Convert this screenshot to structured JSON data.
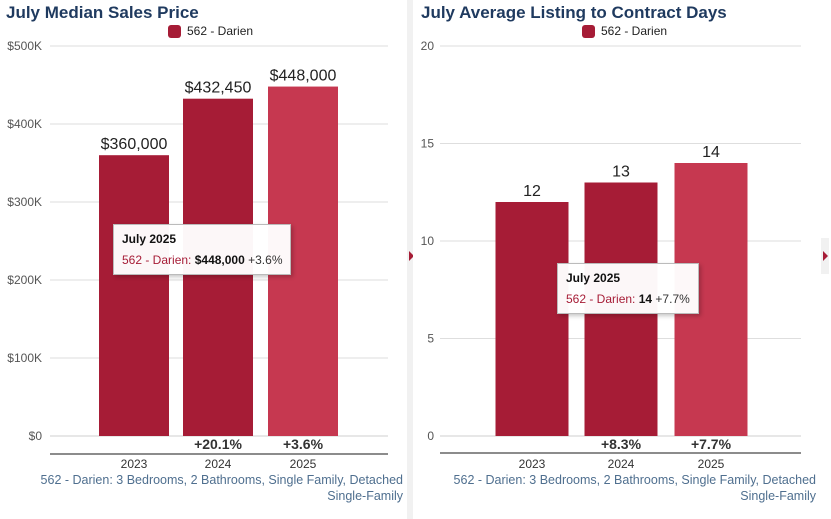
{
  "chart_data": [
    {
      "type": "bar",
      "title": "July Median Sales Price",
      "categories": [
        "2023",
        "2024",
        "2025"
      ],
      "series": [
        {
          "name": "562 - Darien",
          "values": [
            360000,
            432450,
            448000
          ]
        }
      ],
      "data_labels": [
        "$360,000",
        "$432,450",
        "$448,000"
      ],
      "change_labels": [
        "",
        "+20.1%",
        "+3.6%"
      ],
      "y_ticks": [
        0,
        100000,
        200000,
        300000,
        400000,
        500000
      ],
      "y_tick_labels": [
        "$0",
        "$100K",
        "$200K",
        "$300K",
        "$400K",
        "$500K"
      ],
      "ylim": [
        0,
        500000
      ],
      "grid": true,
      "legend": "top-center",
      "footnote": "562 - Darien: 3 Bedrooms, 2 Bathrooms, Single Family, Detached Single-Family",
      "tooltip": {
        "title": "July 2025",
        "series": "562 - Darien",
        "value": "$448,000",
        "change": "+3.6%"
      }
    },
    {
      "type": "bar",
      "title": "July Average Listing to Contract Days",
      "categories": [
        "2023",
        "2024",
        "2025"
      ],
      "series": [
        {
          "name": "562 - Darien",
          "values": [
            12,
            13,
            14
          ]
        }
      ],
      "data_labels": [
        "12",
        "13",
        "14"
      ],
      "change_labels": [
        "",
        "+8.3%",
        "+7.7%"
      ],
      "y_ticks": [
        0,
        5,
        10,
        15,
        20
      ],
      "y_tick_labels": [
        "0",
        "5",
        "10",
        "15",
        "20"
      ],
      "ylim": [
        0,
        20
      ],
      "grid": true,
      "legend": "top-center",
      "footnote": "562 - Darien: 3 Bedrooms, 2 Bathrooms, Single Family, Detached Single-Family",
      "tooltip": {
        "title": "July 2025",
        "series": "562 - Darien",
        "value": "14",
        "change": "+7.7%"
      }
    }
  ],
  "colors": {
    "bar": "#a61c36",
    "bar_highlight": "#c63850",
    "title": "#1f3a5f",
    "footnote": "#4f6f8f"
  }
}
